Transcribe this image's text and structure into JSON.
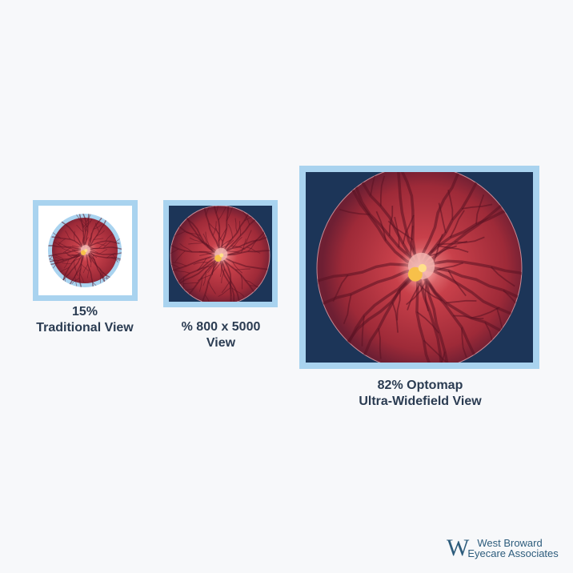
{
  "views": [
    {
      "percent": "15%",
      "title": "Traditional View",
      "background": "#ffffff",
      "ring": true
    },
    {
      "percent": "% 800 x 5000",
      "title": "View",
      "background": "#1c3558",
      "ring": false
    },
    {
      "percent": "82% Optomap",
      "title": "Ultra-Widefield View",
      "background": "#1c3558",
      "ring": false
    }
  ],
  "logo": {
    "line1": "West Broward",
    "line2": "Eyecare Associates",
    "mark": "W"
  },
  "colors": {
    "frame": "#a9d3ef",
    "text": "#2b3c52",
    "retina": "#b9323d",
    "navy": "#1c3558"
  }
}
